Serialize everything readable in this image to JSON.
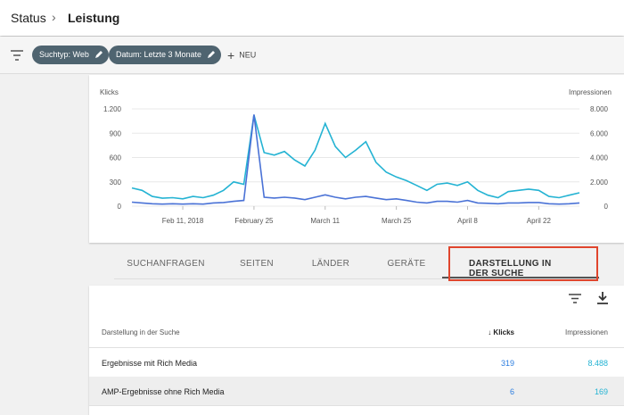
{
  "header": {
    "parent": "Status",
    "title": "Leistung"
  },
  "filters": {
    "chips": [
      "Suchtyp: Web",
      "Datum: Letzte 3 Monate"
    ],
    "new_button": "NEU"
  },
  "chart_data": {
    "type": "line",
    "x": [
      "2018-02-01",
      "2018-02-03",
      "2018-02-05",
      "2018-02-07",
      "2018-02-09",
      "2018-02-11",
      "2018-02-13",
      "2018-02-15",
      "2018-02-17",
      "2018-02-19",
      "2018-02-21",
      "2018-02-23",
      "2018-02-25",
      "2018-02-27",
      "2018-03-01",
      "2018-03-03",
      "2018-03-05",
      "2018-03-07",
      "2018-03-09",
      "2018-03-11",
      "2018-03-13",
      "2018-03-15",
      "2018-03-17",
      "2018-03-19",
      "2018-03-21",
      "2018-03-23",
      "2018-03-25",
      "2018-03-27",
      "2018-03-29",
      "2018-03-31",
      "2018-04-02",
      "2018-04-04",
      "2018-04-06",
      "2018-04-08",
      "2018-04-10",
      "2018-04-12",
      "2018-04-14",
      "2018-04-16",
      "2018-04-18",
      "2018-04-20",
      "2018-04-22",
      "2018-04-24",
      "2018-04-26",
      "2018-04-28",
      "2018-04-30"
    ],
    "xlim": [
      "2018-02-01",
      "2018-04-30"
    ],
    "xticks": [
      {
        "value": "2018-02-11",
        "label": "Feb 11, 2018"
      },
      {
        "value": "2018-02-25",
        "label": "February 25"
      },
      {
        "value": "2018-03-11",
        "label": "March 11"
      },
      {
        "value": "2018-03-25",
        "label": "March 25"
      },
      {
        "value": "2018-04-08",
        "label": "April 8"
      },
      {
        "value": "2018-04-22",
        "label": "April 22"
      }
    ],
    "y_label": "Klicks",
    "y2_label": "Impressionen",
    "ylim": [
      0,
      1200
    ],
    "yticks": [
      0,
      300,
      600,
      900,
      {
        "value": 1200,
        "label": "1.200"
      }
    ],
    "y2lim": [
      0,
      8000
    ],
    "y2ticks": [
      0,
      {
        "value": 2000,
        "label": "2.000"
      },
      {
        "value": 4000,
        "label": "4.000"
      },
      {
        "value": 6000,
        "label": "6.000"
      },
      {
        "value": 8000,
        "label": "8.000"
      }
    ],
    "grid": true,
    "series": [
      {
        "name": "Impressionen",
        "color": "#24b3d3",
        "axis": "y2",
        "values": [
          1500,
          1300,
          800,
          650,
          700,
          600,
          800,
          700,
          900,
          1300,
          2000,
          1800,
          7500,
          4400,
          4200,
          4500,
          3800,
          3300,
          4600,
          6800,
          4900,
          4000,
          4600,
          5300,
          3600,
          2800,
          2400,
          2100,
          1700,
          1300,
          1800,
          1900,
          1700,
          2000,
          1300,
          900,
          700,
          1200,
          1300,
          1400,
          1300,
          800,
          700,
          900,
          1100
        ]
      },
      {
        "name": "Klicks",
        "color": "#4a72d6",
        "values": [
          50,
          40,
          30,
          25,
          30,
          25,
          30,
          25,
          40,
          45,
          60,
          70,
          1130,
          110,
          100,
          110,
          100,
          80,
          110,
          140,
          110,
          90,
          110,
          120,
          100,
          80,
          90,
          70,
          50,
          40,
          60,
          60,
          50,
          70,
          40,
          35,
          30,
          40,
          40,
          45,
          45,
          30,
          25,
          30,
          40
        ]
      }
    ]
  },
  "tabs": {
    "items": [
      "SUCHANFRAGEN",
      "SEITEN",
      "LÄNDER",
      "GERÄTE",
      "DARSTELLUNG IN DER SUCHE"
    ],
    "active": 4
  },
  "table": {
    "columns": [
      "Darstellung in der Suche",
      "Klicks",
      "Impressionen"
    ],
    "rows": [
      [
        "Ergebnisse mit Rich Media",
        "319",
        "8.488"
      ],
      [
        "AMP-Ergebnisse ohne Rich Media",
        "6",
        "169"
      ]
    ]
  }
}
